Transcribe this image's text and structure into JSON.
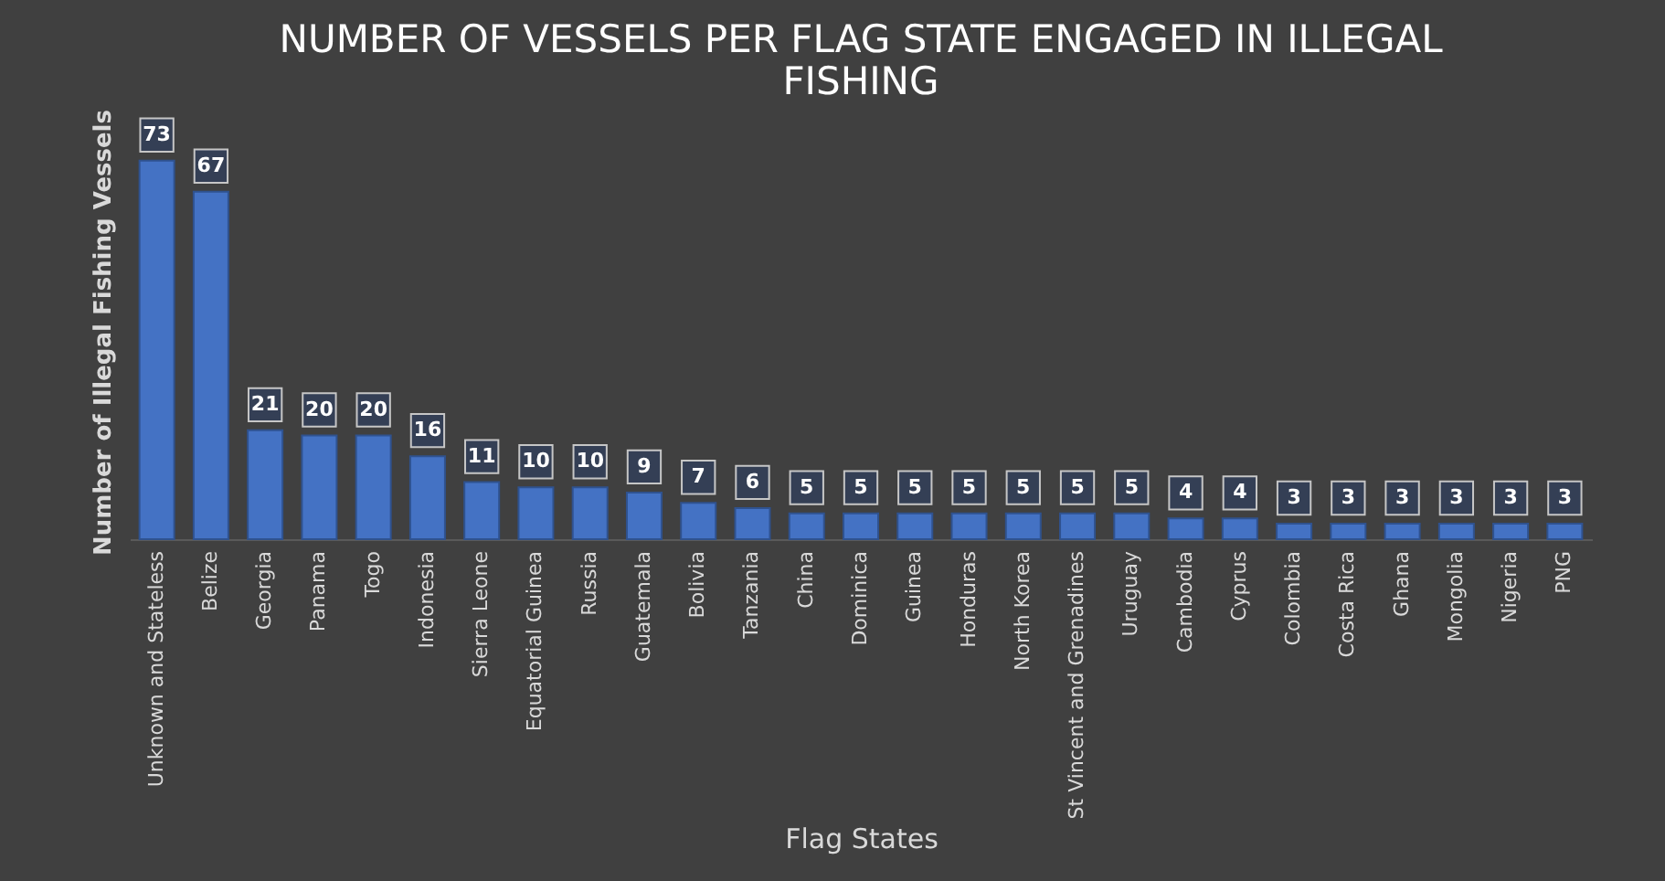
{
  "chart_data": {
    "type": "bar",
    "title": "NUMBER OF VESSELS PER FLAG STATE ENGAGED IN ILLEGAL FISHING",
    "xlabel": "Flag States",
    "ylabel": "Number of Illegal Fishing Vessels",
    "categories": [
      "Unknown and Stateless",
      "Belize",
      "Georgia",
      "Panama",
      "Togo",
      "Indonesia",
      "Sierra Leone",
      "Equatorial Guinea",
      "Russia",
      "Guatemala",
      "Bolivia",
      "Tanzania",
      "China",
      "Dominica",
      "Guinea",
      "Honduras",
      "North Korea",
      "St Vincent and Grenadines",
      "Uruguay",
      "Cambodia",
      "Cyprus",
      "Colombia",
      "Costa Rica",
      "Ghana",
      "Mongolia",
      "Nigeria",
      "PNG"
    ],
    "values": [
      73,
      67,
      21,
      20,
      20,
      16,
      11,
      10,
      10,
      9,
      7,
      6,
      5,
      5,
      5,
      5,
      5,
      5,
      5,
      4,
      4,
      3,
      3,
      3,
      3,
      3,
      3
    ],
    "color": "#4472c4",
    "data_labels": true,
    "grid": false,
    "tick_labels": "x"
  }
}
